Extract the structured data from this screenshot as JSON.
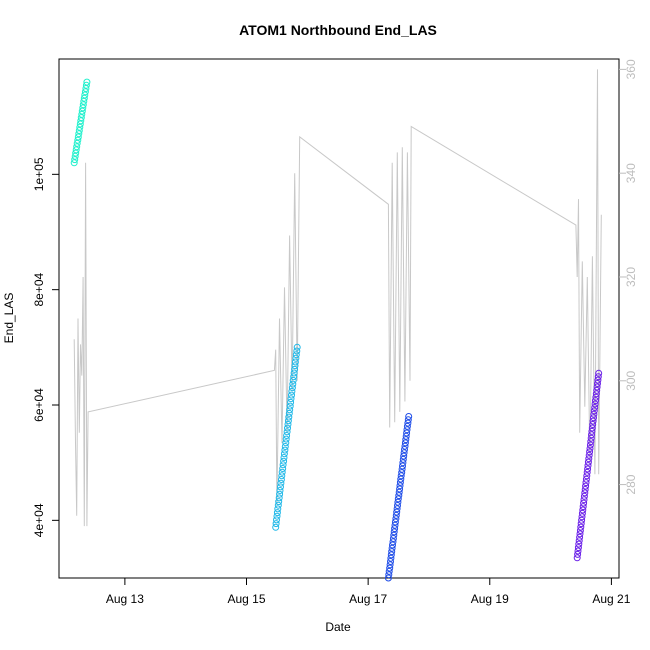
{
  "chart_data": {
    "type": "scatter",
    "title": "ATOM1 Northbound End_LAS",
    "xlabel": "Date",
    "ylabel": "End_LAS",
    "x_axis": {
      "type": "date",
      "range": [
        "2023-08-11T22:00",
        "2023-08-21T03:00"
      ],
      "ticks": [
        {
          "value": "2023-08-13T00:00",
          "label": "Aug 13"
        },
        {
          "value": "2023-08-15T00:00",
          "label": "Aug 15"
        },
        {
          "value": "2023-08-17T00:00",
          "label": "Aug 17"
        },
        {
          "value": "2023-08-19T00:00",
          "label": "Aug 19"
        },
        {
          "value": "2023-08-21T00:00",
          "label": "Aug 21"
        }
      ]
    },
    "y_axis_left": {
      "range": [
        30000,
        120000
      ],
      "ticks": [
        {
          "value": 40000,
          "label": "4e+04"
        },
        {
          "value": 60000,
          "label": "6e+04"
        },
        {
          "value": 80000,
          "label": "8e+04"
        },
        {
          "value": 100000,
          "label": "1e+05"
        }
      ]
    },
    "y_axis_right": {
      "range": [
        262,
        362
      ],
      "color": "#bdbdbd",
      "ticks": [
        {
          "value": 280,
          "label": "280"
        },
        {
          "value": 300,
          "label": "300"
        },
        {
          "value": 320,
          "label": "320"
        },
        {
          "value": 340,
          "label": "340"
        },
        {
          "value": 360,
          "label": "360"
        }
      ]
    },
    "grid": false,
    "point_series": [
      {
        "color": "#1ff0cc",
        "x_start": "2023-08-12T04:00",
        "x_end": "2023-08-12T09:00",
        "y_start": 102000,
        "y_end": 116000,
        "count": 26
      },
      {
        "color": "#1fb8e8",
        "x_start": "2023-08-15T11:30",
        "x_end": "2023-08-15T20:00",
        "y_start": 38800,
        "y_end": 70000,
        "count": 50
      },
      {
        "color": "#1f4de8",
        "x_start": "2023-08-17T08:00",
        "x_end": "2023-08-17T16:00",
        "y_start": 30000,
        "y_end": 58000,
        "count": 50
      },
      {
        "color": "#6a1fe8",
        "x_start": "2023-08-20T10:30",
        "x_end": "2023-08-20T19:00",
        "y_start": 33500,
        "y_end": 65500,
        "count": 55
      }
    ],
    "line_series": {
      "color": "#c8c8c8",
      "axis": "right",
      "points": [
        [
          "2023-08-12T04:00",
          308
        ],
        [
          "2023-08-12T04:30",
          288
        ],
        [
          "2023-08-12T05:00",
          274
        ],
        [
          "2023-08-12T05:30",
          312
        ],
        [
          "2023-08-12T06:00",
          290
        ],
        [
          "2023-08-12T06:30",
          307
        ],
        [
          "2023-08-12T07:00",
          301
        ],
        [
          "2023-08-12T07:30",
          320
        ],
        [
          "2023-08-12T08:00",
          272
        ],
        [
          "2023-08-12T08:30",
          342
        ],
        [
          "2023-08-12T09:00",
          272
        ],
        [
          "2023-08-12T09:30",
          294
        ],
        [
          "2023-08-15T11:00",
          302
        ],
        [
          "2023-08-15T11:30",
          306
        ],
        [
          "2023-08-15T12:00",
          276
        ],
        [
          "2023-08-15T13:00",
          312
        ],
        [
          "2023-08-15T14:00",
          288
        ],
        [
          "2023-08-15T15:00",
          318
        ],
        [
          "2023-08-15T16:00",
          290
        ],
        [
          "2023-08-15T17:00",
          328
        ],
        [
          "2023-08-15T18:00",
          298
        ],
        [
          "2023-08-15T19:00",
          340
        ],
        [
          "2023-08-15T20:00",
          300
        ],
        [
          "2023-08-15T21:00",
          347
        ],
        [
          "2023-08-17T08:00",
          334
        ],
        [
          "2023-08-17T08:30",
          291
        ],
        [
          "2023-08-17T09:30",
          342
        ],
        [
          "2023-08-17T10:30",
          292
        ],
        [
          "2023-08-17T11:30",
          344
        ],
        [
          "2023-08-17T12:30",
          294
        ],
        [
          "2023-08-17T13:30",
          345
        ],
        [
          "2023-08-17T14:30",
          296
        ],
        [
          "2023-08-17T15:30",
          344
        ],
        [
          "2023-08-17T16:30",
          300
        ],
        [
          "2023-08-17T17:00",
          349
        ],
        [
          "2023-08-20T10:00",
          330
        ],
        [
          "2023-08-20T10:30",
          320
        ],
        [
          "2023-08-20T11:00",
          335
        ],
        [
          "2023-08-20T11:30",
          290
        ],
        [
          "2023-08-20T12:30",
          323
        ],
        [
          "2023-08-20T13:30",
          295
        ],
        [
          "2023-08-20T14:30",
          320
        ],
        [
          "2023-08-20T15:30",
          284
        ],
        [
          "2023-08-20T16:30",
          324
        ],
        [
          "2023-08-20T17:30",
          282
        ],
        [
          "2023-08-20T18:30",
          360
        ],
        [
          "2023-08-20T19:00",
          282
        ],
        [
          "2023-08-20T20:00",
          332
        ]
      ]
    }
  }
}
